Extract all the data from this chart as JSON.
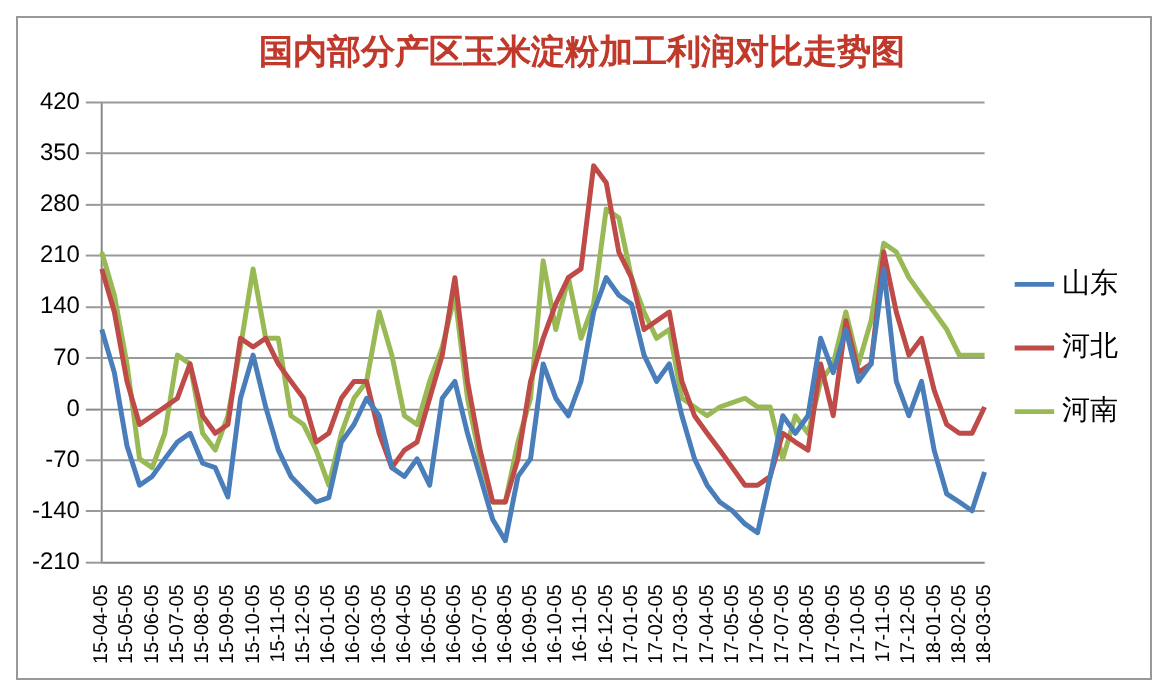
{
  "chart_data": {
    "type": "line",
    "title": "国内部分产区玉米淀粉加工利润对比走势图",
    "categories": [
      "15-04-05",
      null,
      "15-05-05",
      null,
      "15-06-05",
      null,
      "15-07-05",
      null,
      "15-08-05",
      null,
      "15-09-05",
      null,
      "15-10-05",
      null,
      "15-11-05",
      null,
      "15-12-05",
      null,
      "16-01-05",
      null,
      "16-02-05",
      null,
      "16-03-05",
      null,
      "16-04-05",
      null,
      "16-05-05",
      null,
      "16-06-05",
      null,
      "16-07-05",
      null,
      "16-08-05",
      null,
      "16-09-05",
      null,
      "16-10-05",
      null,
      "16-11-05",
      null,
      "16-12-05",
      null,
      "17-01-05",
      null,
      "17-02-05",
      null,
      "17-03-05",
      null,
      "17-04-05",
      null,
      "17-05-05",
      null,
      "17-06-05",
      null,
      "17-07-05",
      null,
      "17-08-05",
      null,
      "17-09-05",
      null,
      "17-10-05",
      null,
      "17-11-05",
      null,
      "17-12-05",
      null,
      "18-01-05",
      null,
      "18-02-05",
      null,
      "18-03-05"
    ],
    "series": [
      {
        "name": "山东",
        "color": "#4a7ebb",
        "values": [
          109,
          50,
          -50,
          -104,
          -92,
          -68,
          -45,
          -33,
          -74,
          -80,
          -120,
          15,
          74,
          3,
          -56,
          -92,
          -110,
          -127,
          -121,
          -45,
          -21,
          15,
          -9,
          -80,
          -92,
          -68,
          -104,
          15,
          38,
          -33,
          -92,
          -151,
          -180,
          -92,
          -68,
          62,
          15,
          -9,
          38,
          133,
          180,
          156,
          144,
          74,
          38,
          62,
          -9,
          -68,
          -104,
          -127,
          -139,
          -157,
          -169,
          -92,
          -9,
          -33,
          -9,
          97,
          50,
          109,
          38,
          62,
          192,
          38,
          -9,
          38,
          -56,
          -116,
          -127,
          -139,
          -86
        ]
      },
      {
        "name": "河北",
        "color": "#be4b48",
        "values": [
          192,
          133,
          38,
          -21,
          -9,
          3,
          15,
          62,
          -9,
          -33,
          -21,
          97,
          85,
          97,
          62,
          38,
          15,
          -45,
          -33,
          15,
          38,
          38,
          -33,
          -80,
          -56,
          -45,
          15,
          74,
          180,
          38,
          -56,
          -127,
          -127,
          -68,
          38,
          97,
          144,
          180,
          192,
          333,
          310,
          215,
          180,
          109,
          121,
          133,
          38,
          -9,
          -33,
          -56,
          -80,
          -104,
          -104,
          -92,
          -33,
          -45,
          -56,
          62,
          -9,
          121,
          50,
          62,
          215,
          133,
          74,
          97,
          26,
          -21,
          -33,
          -33,
          3
        ]
      },
      {
        "name": "河南",
        "color": "#98b954",
        "values": [
          215,
          156,
          62,
          -68,
          -80,
          -33,
          74,
          62,
          -33,
          -56,
          -9,
          85,
          192,
          97,
          97,
          -9,
          -21,
          -56,
          -104,
          -33,
          15,
          38,
          133,
          74,
          -9,
          -21,
          38,
          85,
          156,
          15,
          -68,
          -127,
          -127,
          -45,
          15,
          203,
          109,
          180,
          97,
          144,
          274,
          262,
          180,
          133,
          97,
          109,
          15,
          3,
          -9,
          3,
          9,
          15,
          3,
          3,
          -68,
          -9,
          -33,
          38,
          62,
          133,
          62,
          121,
          227,
          215,
          180,
          156,
          133,
          109,
          74,
          74,
          74
        ]
      }
    ],
    "ylim": [
      -210,
      420
    ],
    "yticks": [
      -210,
      -140,
      -70,
      0,
      70,
      140,
      210,
      280,
      350,
      420
    ],
    "grid": "y",
    "legend": "right"
  }
}
